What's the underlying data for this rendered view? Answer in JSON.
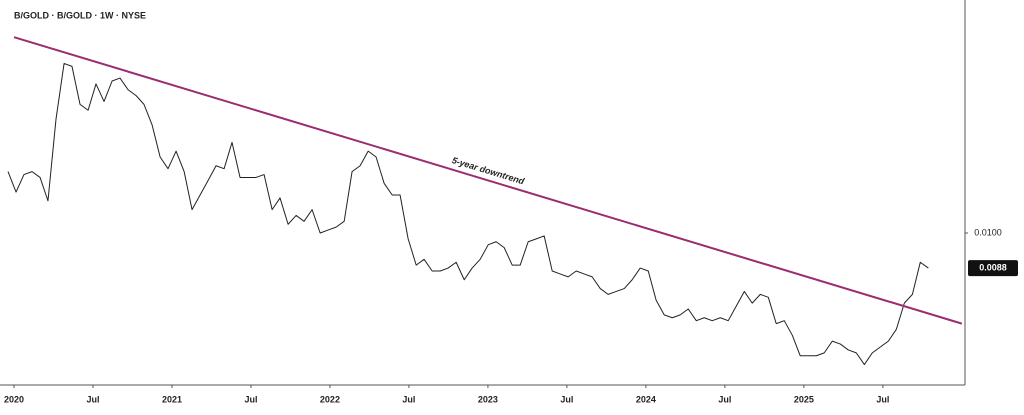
{
  "chart_data": {
    "type": "line",
    "title": "B/GOLD · B/GOLD · 1W · NYSE",
    "xlim": [
      2019.962,
      2026.02
    ],
    "xticks": [
      {
        "value": 2020,
        "label": "2020"
      },
      {
        "value": 2020.5,
        "label": "Jul"
      },
      {
        "value": 2021,
        "label": "2021"
      },
      {
        "value": 2021.5,
        "label": "Jul"
      },
      {
        "value": 2022,
        "label": "2022"
      },
      {
        "value": 2022.5,
        "label": "Jul"
      },
      {
        "value": 2023,
        "label": "2023"
      },
      {
        "value": 2023.5,
        "label": "Jul"
      },
      {
        "value": 2024,
        "label": "2024"
      },
      {
        "value": 2024.5,
        "label": "Jul"
      },
      {
        "value": 2025,
        "label": "2025"
      },
      {
        "value": 2025.5,
        "label": "Jul"
      }
    ],
    "ylim": [
      0.0048,
      0.0178
    ],
    "yticks": [
      {
        "value": 0.01,
        "label": "0.0100"
      }
    ],
    "last_value": 0.0088,
    "grid": false,
    "series": [
      {
        "name": "B/GOLD",
        "color": "#222222",
        "x": [
          2019.962,
          2020.013,
          2020.063,
          2020.114,
          2020.165,
          2020.215,
          2020.266,
          2020.317,
          2020.367,
          2020.418,
          2020.469,
          2020.519,
          2020.57,
          2020.621,
          2020.671,
          2020.722,
          2020.773,
          2020.823,
          2020.874,
          2020.925,
          2020.975,
          2021.026,
          2021.077,
          2021.127,
          2021.178,
          2021.229,
          2021.279,
          2021.33,
          2021.38,
          2021.431,
          2021.482,
          2021.532,
          2021.583,
          2021.634,
          2021.684,
          2021.735,
          2021.786,
          2021.836,
          2021.887,
          2021.938,
          2021.988,
          2022.039,
          2022.09,
          2022.14,
          2022.191,
          2022.242,
          2022.292,
          2022.343,
          2022.394,
          2022.444,
          2022.495,
          2022.546,
          2022.596,
          2022.647,
          2022.698,
          2022.748,
          2022.799,
          2022.85,
          2022.9,
          2022.951,
          2023.002,
          2023.052,
          2023.103,
          2023.154,
          2023.204,
          2023.255,
          2023.306,
          2023.356,
          2023.407,
          2023.457,
          2023.508,
          2023.559,
          2023.609,
          2023.66,
          2023.711,
          2023.761,
          2023.812,
          2023.863,
          2023.913,
          2023.964,
          2024.015,
          2024.065,
          2024.116,
          2024.167,
          2024.217,
          2024.268,
          2024.319,
          2024.369,
          2024.42,
          2024.471,
          2024.521,
          2024.572,
          2024.623,
          2024.673,
          2024.724,
          2024.775,
          2024.825,
          2024.876,
          2024.927,
          2024.977,
          2025.028,
          2025.079,
          2025.129,
          2025.18,
          2025.231,
          2025.281,
          2025.332,
          2025.383,
          2025.433,
          2025.484,
          2025.535,
          2025.585,
          2025.636,
          2025.687,
          2025.737,
          2025.788
        ],
        "values": [
          0.0121,
          0.0114,
          0.012,
          0.0121,
          0.0119,
          0.0111,
          0.0139,
          0.0158,
          0.0157,
          0.0144,
          0.0142,
          0.0151,
          0.0145,
          0.0152,
          0.0153,
          0.0149,
          0.0147,
          0.0144,
          0.0137,
          0.0126,
          0.0122,
          0.0128,
          0.0121,
          0.0108,
          0.0113,
          0.0118,
          0.0123,
          0.0122,
          0.0131,
          0.0119,
          0.0119,
          0.0119,
          0.012,
          0.0108,
          0.0112,
          0.0103,
          0.0106,
          0.0104,
          0.0108,
          0.01,
          0.0101,
          0.0102,
          0.0104,
          0.0121,
          0.0123,
          0.0128,
          0.0126,
          0.0117,
          0.0113,
          0.0113,
          0.0098,
          0.0089,
          0.0091,
          0.0087,
          0.0087,
          0.0088,
          0.009,
          0.0084,
          0.0088,
          0.0091,
          0.0096,
          0.0097,
          0.0095,
          0.0089,
          0.0089,
          0.0097,
          0.0098,
          0.0099,
          0.0087,
          0.0086,
          0.0085,
          0.0087,
          0.0086,
          0.0085,
          0.0081,
          0.0079,
          0.008,
          0.0081,
          0.0084,
          0.0088,
          0.0087,
          0.0077,
          0.0072,
          0.0071,
          0.0072,
          0.0074,
          0.007,
          0.0071,
          0.007,
          0.0071,
          0.007,
          0.0075,
          0.008,
          0.0076,
          0.0079,
          0.0078,
          0.0069,
          0.007,
          0.0065,
          0.0058,
          0.0058,
          0.0058,
          0.0059,
          0.0063,
          0.0062,
          0.006,
          0.0059,
          0.0055,
          0.0059,
          0.0061,
          0.0063,
          0.0067,
          0.0076,
          0.0079,
          0.009,
          0.0088
        ]
      }
    ],
    "trendline": {
      "label": "5-year downtrend",
      "color": "#9b2d6f",
      "x": [
        2020.0,
        2026.0
      ],
      "values": [
        0.0167,
        0.0069
      ]
    }
  }
}
